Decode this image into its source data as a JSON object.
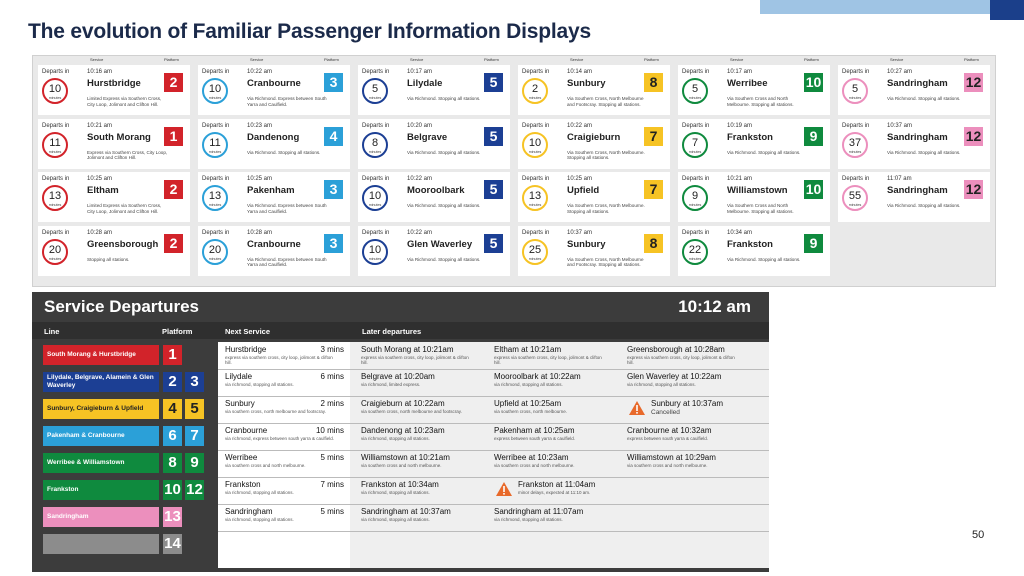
{
  "title": "The evolution of Familiar Passenger Information Displays",
  "page_number": "50",
  "top_panel": {
    "header_labels": {
      "service": "Service",
      "platform": "Platform"
    },
    "departs_label": "Departs in",
    "minutes_label": "minutes",
    "columns": [
      {
        "color": "#d2232a",
        "cards": [
          {
            "time": "10:16 am",
            "station": "Hurstbridge",
            "platform": "2",
            "minutes": "10",
            "description": "Limited Express via Southern Cross, City Loop, Jolimont and Clifton Hill."
          },
          {
            "time": "10:21 am",
            "station": "South Morang",
            "platform": "1",
            "minutes": "11",
            "description": "Express via Southern Cross, City Loop, Jolimont and Clifton Hill."
          },
          {
            "time": "10:25 am",
            "station": "Eltham",
            "platform": "2",
            "minutes": "13",
            "description": "Limited Express via Southern Cross, City Loop, Jolimont and Clifton Hill."
          },
          {
            "time": "10:28 am",
            "station": "Greensborough",
            "platform": "2",
            "minutes": "20",
            "description": "Stopping all stations."
          }
        ]
      },
      {
        "color": "#2ba0d8",
        "cards": [
          {
            "time": "10:22 am",
            "station": "Cranbourne",
            "platform": "3",
            "minutes": "10",
            "description": "Via Richmond. Express between South Yarra and Caulfield."
          },
          {
            "time": "10:23 am",
            "station": "Dandenong",
            "platform": "4",
            "minutes": "11",
            "description": "Via Richmond. Stopping all stations."
          },
          {
            "time": "10:25 am",
            "station": "Pakenham",
            "platform": "3",
            "minutes": "13",
            "description": "Via Richmond. Express between South Yarra and Caulfield."
          },
          {
            "time": "10:28 am",
            "station": "Cranbourne",
            "platform": "3",
            "minutes": "20",
            "description": "Via Richmond. Express between South Yarra and Caulfield."
          }
        ]
      },
      {
        "color": "#1c3f94",
        "cards": [
          {
            "time": "10:17 am",
            "station": "Lilydale",
            "platform": "5",
            "minutes": "5",
            "description": "Via Richmond. Stopping all stations."
          },
          {
            "time": "10:20 am",
            "station": "Belgrave",
            "platform": "5",
            "minutes": "8",
            "description": "Via Richmond. Stopping all stations."
          },
          {
            "time": "10:22 am",
            "station": "Mooroolbark",
            "platform": "5",
            "minutes": "10",
            "description": "Via Richmond. Stopping all stations."
          },
          {
            "time": "10:22 am",
            "station": "Glen Waverley",
            "platform": "5",
            "minutes": "10",
            "description": "Via Richmond. Stopping all stations."
          }
        ]
      },
      {
        "color": "#f6c324",
        "cards": [
          {
            "time": "10:14 am",
            "station": "Sunbury",
            "platform": "8",
            "minutes": "2",
            "description": "Via Southern Cross, North Melbourne and Footscray. Stopping all stations."
          },
          {
            "time": "10:22 am",
            "station": "Craigieburn",
            "platform": "7",
            "minutes": "10",
            "description": "Via Southern Cross, North Melbourne. Stopping all stations."
          },
          {
            "time": "10:25 am",
            "station": "Upfield",
            "platform": "7",
            "minutes": "13",
            "description": "Via Southern Cross, North Melbourne. Stopping all stations."
          },
          {
            "time": "10:37 am",
            "station": "Sunbury",
            "platform": "8",
            "minutes": "25",
            "description": "Via Southern Cross, North Melbourne and Footscray. Stopping all stations."
          }
        ]
      },
      {
        "color": "#0f8a3e",
        "cards": [
          {
            "time": "10:17 am",
            "station": "Werribee",
            "platform": "10",
            "minutes": "5",
            "description": "Via Southern Cross and North Melbourne. Stopping all stations."
          },
          {
            "time": "10:19 am",
            "station": "Frankston",
            "platform": "9",
            "minutes": "7",
            "description": "Via Richmond. Stopping all stations."
          },
          {
            "time": "10:21 am",
            "station": "Williamstown",
            "platform": "10",
            "minutes": "9",
            "description": "Via Southern Cross and North Melbourne. Stopping all stations."
          },
          {
            "time": "10:34 am",
            "station": "Frankston",
            "platform": "9",
            "minutes": "22",
            "description": "Via Richmond. Stopping all stations."
          }
        ]
      },
      {
        "color": "#ec8fbd",
        "cards": [
          {
            "time": "10:27 am",
            "station": "Sandringham",
            "platform": "12",
            "minutes": "5",
            "description": "Via Richmond. Stopping all stations."
          },
          {
            "time": "10:37 am",
            "station": "Sandringham",
            "platform": "12",
            "minutes": "37",
            "description": "Via Richmond. Stopping all stations."
          },
          {
            "time": "11:07 am",
            "station": "Sandringham",
            "platform": "12",
            "minutes": "55",
            "description": "Via Richmond. Stopping all stations."
          }
        ]
      }
    ]
  },
  "departures_board": {
    "title": "Service Departures",
    "clock": "10:12 am",
    "column_headers": {
      "line": "Line",
      "platform": "Platform",
      "next": "Next Service",
      "later": "Later departures"
    },
    "rows": [
      {
        "line": "South Morang & Hurstbridge",
        "color": "#d2232a",
        "platforms": [
          "1"
        ],
        "next_service": {
          "station": "Hurstbridge",
          "due": "3 mins",
          "description": "express via southern cross, city loop, jolimont & clifton hill."
        },
        "later": [
          {
            "text": "South Morang at 10:21am",
            "note": "express via southern cross, city loop, jolimont & clifton hill."
          },
          {
            "text": "Eltham at 10:21am",
            "note": "express via southern cross, city loop, jolimont & clifton hill."
          },
          {
            "text": "Greensborough at 10:28am",
            "note": "express via southern cross, city loop, jolimont & clifton hill."
          }
        ]
      },
      {
        "line": "Lilydale, Belgrave, Alamein & Glen Waverley",
        "color": "#1c3f94",
        "platforms": [
          "2",
          "3"
        ],
        "next_service": {
          "station": "Lilydale",
          "due": "6 mins",
          "description": "via richmond, stopping all stations."
        },
        "later": [
          {
            "text": "Belgrave at 10:20am",
            "note": "via richmond, limited express."
          },
          {
            "text": "Mooroolbark at 10:22am",
            "note": "via richmond, stopping all stations."
          },
          {
            "text": "Glen Waverley at 10:22am",
            "note": "via richmond, stopping all stations."
          }
        ]
      },
      {
        "line": "Sunbury, Craigieburn & Upfield",
        "color": "#f6c324",
        "platforms": [
          "4",
          "5"
        ],
        "next_service": {
          "station": "Sunbury",
          "due": "2 mins",
          "description": "via southern cross, north melbourne and footscray."
        },
        "later": [
          {
            "text": "Craigieburn at 10:22am",
            "note": "via southern cross, north melbourne and footscray."
          },
          {
            "text": "Upfield at 10:25am",
            "note": "via southern cross, north melbourne."
          },
          {
            "text": "Sunbury at 10:37am",
            "status": "Cancelled"
          }
        ]
      },
      {
        "line": "Pakenham & Cranbourne",
        "color": "#2ba0d8",
        "platforms": [
          "6",
          "7"
        ],
        "next_service": {
          "station": "Cranbourne",
          "due": "10 mins",
          "description": "via richmond, express between south yarra & caulfield."
        },
        "later": [
          {
            "text": "Dandenong at 10:23am",
            "note": "via richmond, stopping all stations."
          },
          {
            "text": "Pakenham at 10:25am",
            "note": "express between south yarra & caulfield."
          },
          {
            "text": "Cranbourne at 10:32am",
            "note": "express between south yarra & caulfield."
          }
        ]
      },
      {
        "line": "Werribee & Williamstown",
        "color": "#0f8a3e",
        "platforms": [
          "8",
          "9"
        ],
        "next_service": {
          "station": "Werribee",
          "due": "5 mins",
          "description": "via southern cross and north melbourne."
        },
        "later": [
          {
            "text": "Williamstown at 10:21am",
            "note": "via southern cross and north melbourne."
          },
          {
            "text": "Werribee at 10:23am",
            "note": "via southern cross and north melbourne."
          },
          {
            "text": "Williamstown at 10:29am",
            "note": "via southern cross and north melbourne."
          }
        ]
      },
      {
        "line": "Frankston",
        "color": "#0f8a3e",
        "platforms": [
          "10",
          "12"
        ],
        "next_service": {
          "station": "Frankston",
          "due": "7 mins",
          "description": "via richmond, stopping all stations."
        },
        "later": [
          {
            "text": "Frankston at 10:34am",
            "note": "via richmond, stopping all stations."
          },
          {
            "text": "Frankston at 11:04am",
            "note": "minor delays, expected at 11:10 am.",
            "warning": true
          }
        ]
      },
      {
        "line": "Sandringham",
        "color": "#ec8fbd",
        "platforms": [
          "13"
        ],
        "next_service": {
          "station": "Sandringham",
          "due": "5 mins",
          "description": "via richmond, stopping all stations."
        },
        "later": [
          {
            "text": "Sandringham at 10:37am",
            "note": "via richmond, stopping all stations."
          },
          {
            "text": "Sandringham at 11:07am",
            "note": "via richmond, stopping all stations."
          }
        ]
      },
      {
        "color": "#8c8c8c",
        "platforms": [
          "14"
        ]
      }
    ]
  }
}
